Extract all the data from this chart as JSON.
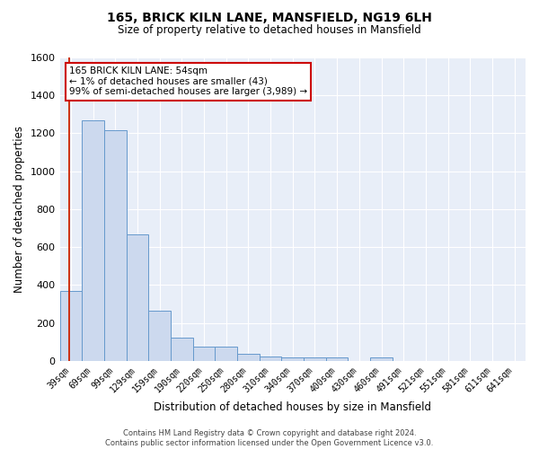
{
  "title": "165, BRICK KILN LANE, MANSFIELD, NG19 6LH",
  "subtitle": "Size of property relative to detached houses in Mansfield",
  "xlabel": "Distribution of detached houses by size in Mansfield",
  "ylabel": "Number of detached properties",
  "footer": "Contains HM Land Registry data © Crown copyright and database right 2024.\nContains public sector information licensed under the Open Government Licence v3.0.",
  "categories": [
    "39sqm",
    "69sqm",
    "99sqm",
    "129sqm",
    "159sqm",
    "190sqm",
    "220sqm",
    "250sqm",
    "280sqm",
    "310sqm",
    "340sqm",
    "370sqm",
    "400sqm",
    "430sqm",
    "460sqm",
    "491sqm",
    "521sqm",
    "551sqm",
    "581sqm",
    "611sqm",
    "641sqm"
  ],
  "values": [
    370,
    1270,
    1215,
    665,
    265,
    120,
    75,
    75,
    35,
    22,
    18,
    18,
    16,
    0,
    18,
    0,
    0,
    0,
    0,
    0,
    0
  ],
  "bar_color": "#ccd9ee",
  "bar_edge_color": "#6699cc",
  "background_color": "#e8eef8",
  "grid_color": "#ffffff",
  "red_line_x": 0.5,
  "annotation_text": "165 BRICK KILN LANE: 54sqm\n← 1% of detached houses are smaller (43)\n99% of semi-detached houses are larger (3,989) →",
  "annotation_box_color": "#ffffff",
  "annotation_box_edge": "#cc0000",
  "ylim": [
    0,
    1600
  ],
  "yticks": [
    0,
    200,
    400,
    600,
    800,
    1000,
    1200,
    1400,
    1600
  ]
}
